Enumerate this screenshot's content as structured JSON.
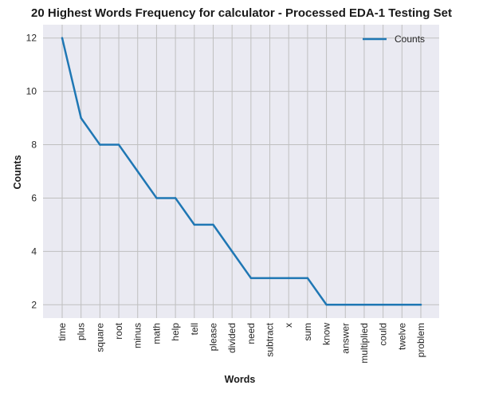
{
  "chart_data": {
    "type": "line",
    "title": "20 Highest Words Frequency for calculator - Processed EDA-1 Testing Set",
    "xlabel": "Words",
    "ylabel": "Counts",
    "categories": [
      "time",
      "plus",
      "square",
      "root",
      "minus",
      "math",
      "help",
      "tell",
      "please",
      "divided",
      "need",
      "subtract",
      "x",
      "sum",
      "know",
      "answer",
      "multiplied",
      "could",
      "twelve",
      "problem"
    ],
    "series": [
      {
        "name": "Counts",
        "values": [
          12,
          9,
          8,
          8,
          7,
          6,
          6,
          5,
          5,
          4,
          3,
          3,
          3,
          3,
          2,
          2,
          2,
          2,
          2,
          2
        ],
        "color": "#1f77b4"
      }
    ],
    "yticks": [
      2,
      4,
      6,
      8,
      10,
      12
    ],
    "ylim": [
      1.5,
      12.5
    ],
    "grid": true,
    "legend": "top-right",
    "background": "#eaeaf2",
    "grid_color": "#bfbfbf"
  }
}
